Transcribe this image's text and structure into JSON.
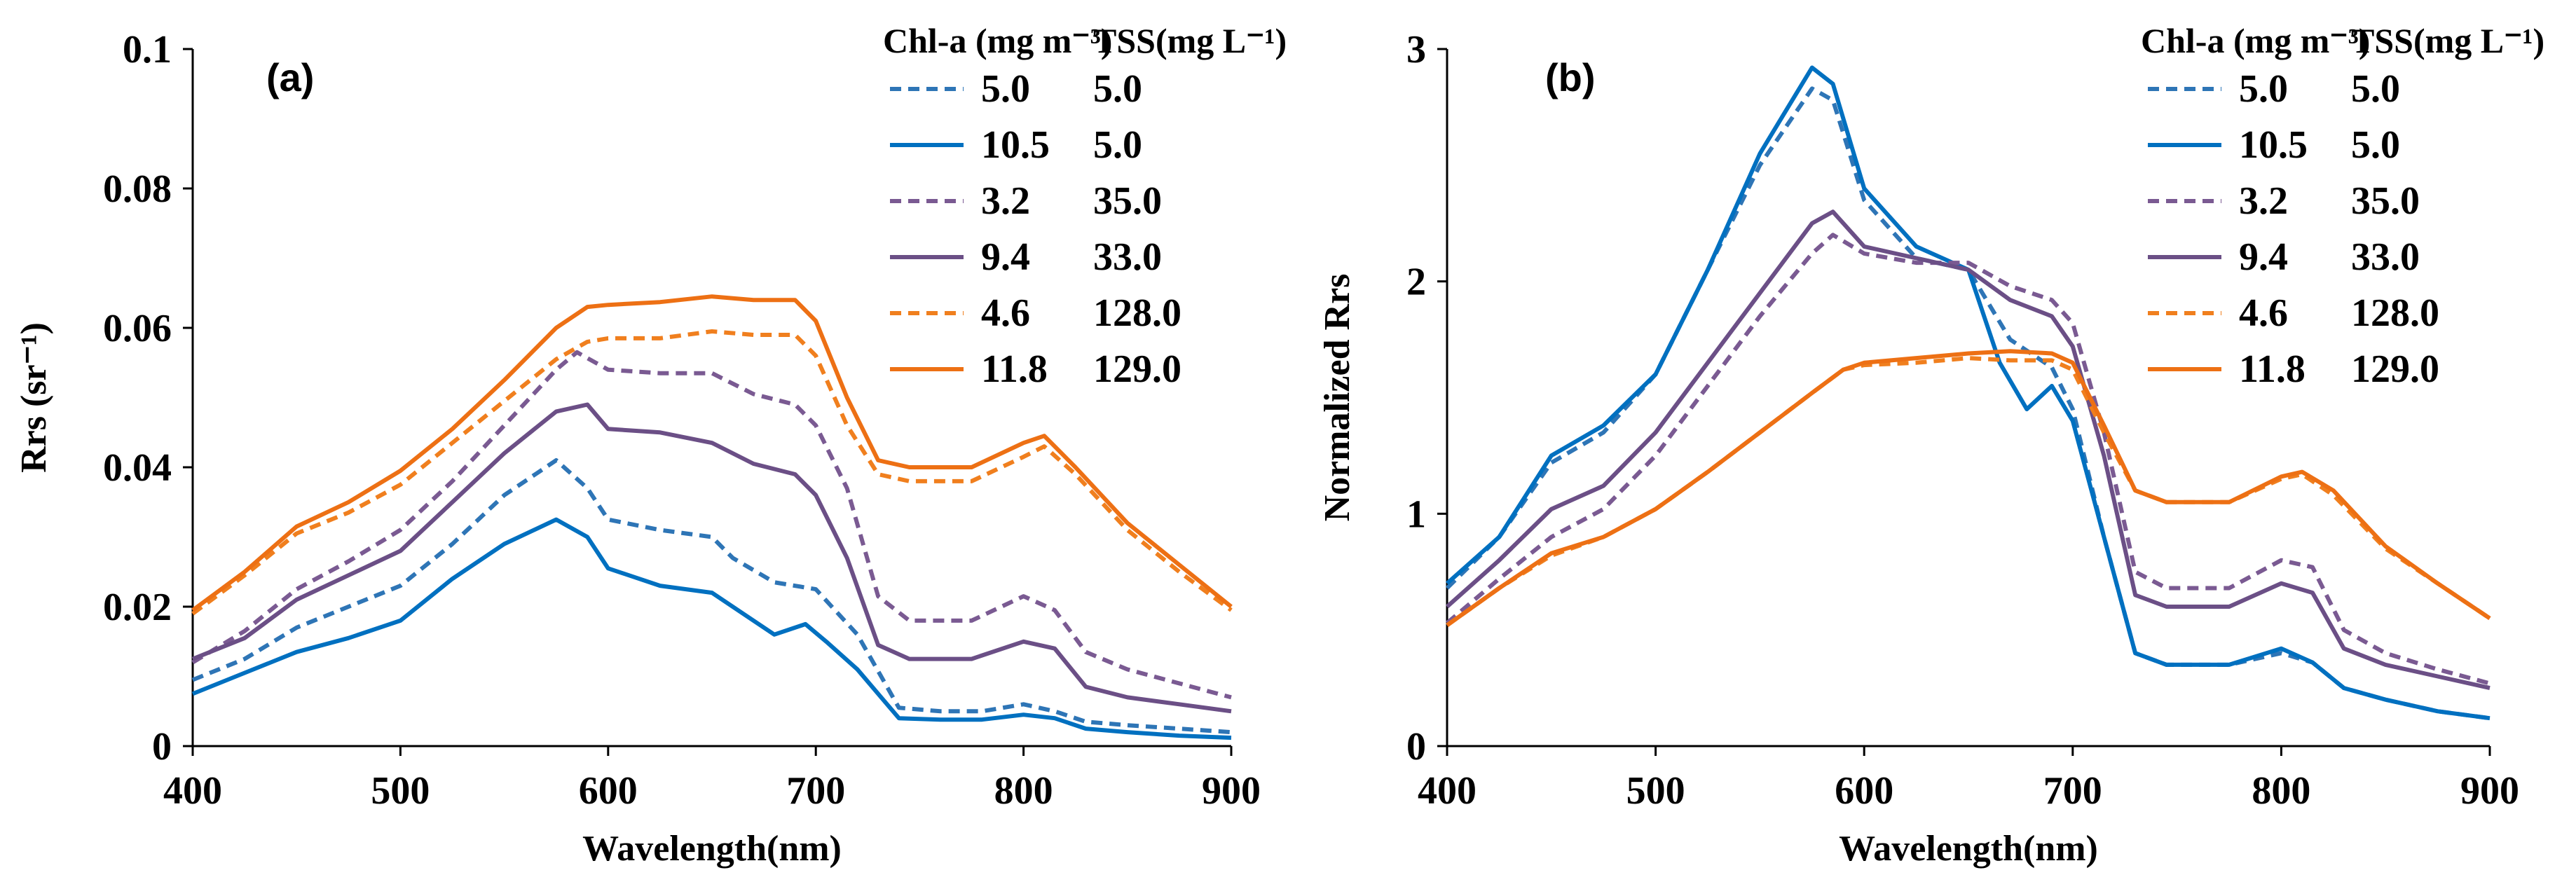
{
  "chart_data": [
    {
      "type": "line",
      "panel_label": "(a)",
      "xlabel": "Wavelength(nm)",
      "ylabel": "Rrs (sr⁻¹)",
      "xlim": [
        400,
        900
      ],
      "ylim": [
        0,
        0.1
      ],
      "xticks": [
        400,
        500,
        600,
        700,
        800,
        900
      ],
      "xtick_labels": [
        "400",
        "500",
        "600",
        "700",
        "800",
        "900"
      ],
      "yticks": [
        0,
        0.02,
        0.04,
        0.06,
        0.08,
        0.1
      ],
      "ytick_labels": [
        "0",
        "0.02",
        "0.04",
        "0.06",
        "0.08",
        "0.1"
      ],
      "legend": {
        "placement": "top-right",
        "header_chl": "Chl-a (mg m⁻³)",
        "header_tss": "TSS(mg L⁻¹)"
      },
      "series": [
        {
          "name": "5.0 / 5.0",
          "chl": "5.0",
          "tss": "5.0",
          "color": "#2e75b6",
          "dashed": true,
          "x": [
            400,
            425,
            450,
            475,
            500,
            525,
            550,
            575,
            590,
            600,
            625,
            650,
            660,
            680,
            700,
            720,
            740,
            760,
            780,
            800,
            815,
            830,
            850,
            875,
            900
          ],
          "y": [
            0.0095,
            0.0125,
            0.017,
            0.02,
            0.023,
            0.029,
            0.036,
            0.041,
            0.037,
            0.0325,
            0.031,
            0.03,
            0.027,
            0.0235,
            0.0225,
            0.016,
            0.0055,
            0.005,
            0.005,
            0.006,
            0.005,
            0.0035,
            0.003,
            0.0025,
            0.002
          ]
        },
        {
          "name": "10.5 / 5.0",
          "chl": "10.5",
          "tss": "5.0",
          "color": "#0070c0",
          "dashed": false,
          "x": [
            400,
            425,
            450,
            475,
            500,
            525,
            550,
            575,
            590,
            600,
            625,
            650,
            660,
            680,
            695,
            705,
            720,
            740,
            760,
            780,
            800,
            815,
            830,
            850,
            875,
            900
          ],
          "y": [
            0.0075,
            0.0105,
            0.0135,
            0.0155,
            0.018,
            0.024,
            0.029,
            0.0325,
            0.03,
            0.0255,
            0.023,
            0.022,
            0.02,
            0.016,
            0.0175,
            0.015,
            0.011,
            0.004,
            0.0038,
            0.0038,
            0.0045,
            0.004,
            0.0025,
            0.002,
            0.0015,
            0.0012
          ]
        },
        {
          "name": "3.2 / 35.0",
          "chl": "3.2",
          "tss": "35.0",
          "color": "#7a5a92",
          "dashed": true,
          "x": [
            400,
            425,
            450,
            475,
            500,
            525,
            550,
            575,
            585,
            600,
            625,
            650,
            670,
            690,
            700,
            715,
            730,
            745,
            775,
            800,
            815,
            830,
            850,
            875,
            900
          ],
          "y": [
            0.012,
            0.0165,
            0.0225,
            0.0265,
            0.031,
            0.038,
            0.046,
            0.054,
            0.0565,
            0.054,
            0.0535,
            0.0535,
            0.0505,
            0.049,
            0.046,
            0.037,
            0.0215,
            0.018,
            0.018,
            0.0215,
            0.0195,
            0.0135,
            0.011,
            0.009,
            0.007
          ]
        },
        {
          "name": "9.4 / 33.0",
          "chl": "9.4",
          "tss": "33.0",
          "color": "#6b4f86",
          "dashed": false,
          "x": [
            400,
            425,
            450,
            475,
            500,
            525,
            550,
            575,
            590,
            600,
            625,
            650,
            670,
            690,
            700,
            715,
            730,
            745,
            775,
            800,
            815,
            830,
            850,
            875,
            900
          ],
          "y": [
            0.0125,
            0.0155,
            0.021,
            0.0245,
            0.028,
            0.035,
            0.042,
            0.048,
            0.049,
            0.0455,
            0.045,
            0.0435,
            0.0405,
            0.039,
            0.036,
            0.027,
            0.0145,
            0.0125,
            0.0125,
            0.015,
            0.014,
            0.0085,
            0.007,
            0.006,
            0.005
          ]
        },
        {
          "name": "4.6 / 128.0",
          "chl": "4.6",
          "tss": "128.0",
          "color": "#f07f1e",
          "dashed": true,
          "x": [
            400,
            425,
            450,
            475,
            500,
            525,
            550,
            575,
            590,
            600,
            625,
            650,
            670,
            690,
            700,
            715,
            730,
            745,
            775,
            800,
            810,
            825,
            850,
            875,
            900
          ],
          "y": [
            0.019,
            0.0245,
            0.0305,
            0.0335,
            0.0375,
            0.0435,
            0.0495,
            0.0555,
            0.058,
            0.0585,
            0.0585,
            0.0595,
            0.059,
            0.059,
            0.056,
            0.046,
            0.039,
            0.038,
            0.038,
            0.0415,
            0.043,
            0.039,
            0.031,
            0.025,
            0.0195
          ]
        },
        {
          "name": "11.8 / 129.0",
          "chl": "11.8",
          "tss": "129.0",
          "color": "#ed7014",
          "dashed": false,
          "x": [
            400,
            425,
            450,
            475,
            500,
            525,
            550,
            575,
            590,
            600,
            625,
            650,
            670,
            690,
            700,
            715,
            730,
            745,
            775,
            800,
            810,
            825,
            850,
            875,
            900
          ],
          "y": [
            0.0195,
            0.025,
            0.0315,
            0.035,
            0.0395,
            0.0455,
            0.0525,
            0.06,
            0.063,
            0.0633,
            0.0637,
            0.0645,
            0.064,
            0.064,
            0.061,
            0.05,
            0.041,
            0.04,
            0.04,
            0.0435,
            0.0445,
            0.04,
            0.032,
            0.026,
            0.02
          ]
        }
      ]
    },
    {
      "type": "line",
      "panel_label": "(b)",
      "xlabel": "Wavelength(nm)",
      "ylabel": "Normalized Rrs",
      "xlim": [
        400,
        900
      ],
      "ylim": [
        0,
        3
      ],
      "xticks": [
        400,
        500,
        600,
        700,
        800,
        900
      ],
      "xtick_labels": [
        "400",
        "500",
        "600",
        "700",
        "800",
        "900"
      ],
      "yticks": [
        0,
        1,
        2,
        3
      ],
      "ytick_labels": [
        "0",
        "1",
        "2",
        "3"
      ],
      "legend": {
        "placement": "top-right",
        "header_chl": "Chl-a (mg m⁻³)",
        "header_tss": "TSS(mg L⁻¹)"
      },
      "series": [
        {
          "name": "5.0 / 5.0",
          "chl": "5.0",
          "tss": "5.0",
          "color": "#2e75b6",
          "dashed": true,
          "x": [
            400,
            425,
            450,
            475,
            500,
            525,
            550,
            575,
            585,
            600,
            625,
            650,
            670,
            690,
            700,
            715,
            730,
            745,
            775,
            800,
            815,
            830,
            850,
            875,
            900
          ],
          "y": [
            0.68,
            0.9,
            1.22,
            1.35,
            1.6,
            2.05,
            2.5,
            2.83,
            2.78,
            2.35,
            2.1,
            2.05,
            1.75,
            1.63,
            1.45,
            0.9,
            0.4,
            0.35,
            0.35,
            0.4,
            0.36,
            0.25,
            0.2,
            0.15,
            0.12
          ]
        },
        {
          "name": "10.5 / 5.0",
          "chl": "10.5",
          "tss": "5.0",
          "color": "#0070c0",
          "dashed": false,
          "x": [
            400,
            425,
            450,
            475,
            500,
            525,
            550,
            575,
            585,
            600,
            625,
            650,
            665,
            678,
            690,
            700,
            715,
            730,
            745,
            775,
            800,
            815,
            830,
            850,
            875,
            900
          ],
          "y": [
            0.7,
            0.9,
            1.25,
            1.38,
            1.6,
            2.05,
            2.55,
            2.92,
            2.85,
            2.4,
            2.15,
            2.05,
            1.65,
            1.45,
            1.55,
            1.4,
            0.9,
            0.4,
            0.35,
            0.35,
            0.42,
            0.36,
            0.25,
            0.2,
            0.15,
            0.12
          ]
        },
        {
          "name": "3.2 / 35.0",
          "chl": "3.2",
          "tss": "35.0",
          "color": "#7a5a92",
          "dashed": true,
          "x": [
            400,
            425,
            450,
            475,
            500,
            525,
            550,
            575,
            585,
            600,
            625,
            650,
            670,
            690,
            700,
            715,
            730,
            745,
            775,
            800,
            815,
            830,
            850,
            875,
            900
          ],
          "y": [
            0.53,
            0.72,
            0.9,
            1.02,
            1.25,
            1.55,
            1.85,
            2.12,
            2.2,
            2.12,
            2.08,
            2.08,
            1.98,
            1.92,
            1.82,
            1.35,
            0.75,
            0.68,
            0.68,
            0.8,
            0.77,
            0.5,
            0.4,
            0.33,
            0.27
          ]
        },
        {
          "name": "9.4 / 33.0",
          "chl": "9.4",
          "tss": "33.0",
          "color": "#6b4f86",
          "dashed": false,
          "x": [
            400,
            425,
            450,
            475,
            500,
            525,
            550,
            575,
            585,
            600,
            625,
            650,
            670,
            690,
            700,
            715,
            730,
            745,
            775,
            800,
            815,
            830,
            850,
            875,
            900
          ],
          "y": [
            0.6,
            0.8,
            1.02,
            1.12,
            1.35,
            1.65,
            1.95,
            2.25,
            2.3,
            2.15,
            2.1,
            2.05,
            1.92,
            1.85,
            1.72,
            1.25,
            0.65,
            0.6,
            0.6,
            0.7,
            0.66,
            0.42,
            0.35,
            0.3,
            0.25
          ]
        },
        {
          "name": "4.6 / 128.0",
          "chl": "4.6",
          "tss": "128.0",
          "color": "#f07f1e",
          "dashed": true,
          "x": [
            400,
            425,
            450,
            475,
            500,
            525,
            550,
            575,
            590,
            600,
            625,
            650,
            670,
            690,
            700,
            715,
            730,
            745,
            775,
            800,
            810,
            825,
            850,
            875,
            900
          ],
          "y": [
            0.52,
            0.68,
            0.82,
            0.9,
            1.02,
            1.18,
            1.35,
            1.52,
            1.62,
            1.64,
            1.65,
            1.67,
            1.66,
            1.66,
            1.62,
            1.35,
            1.1,
            1.05,
            1.05,
            1.15,
            1.17,
            1.08,
            0.85,
            0.7,
            0.55
          ]
        },
        {
          "name": "11.8 / 129.0",
          "chl": "11.8",
          "tss": "129.0",
          "color": "#ed7014",
          "dashed": false,
          "x": [
            400,
            425,
            450,
            475,
            500,
            525,
            550,
            575,
            590,
            600,
            625,
            650,
            670,
            690,
            700,
            715,
            730,
            745,
            775,
            800,
            810,
            825,
            850,
            875,
            900
          ],
          "y": [
            0.52,
            0.68,
            0.83,
            0.9,
            1.02,
            1.18,
            1.35,
            1.52,
            1.62,
            1.65,
            1.67,
            1.69,
            1.7,
            1.69,
            1.65,
            1.38,
            1.1,
            1.05,
            1.05,
            1.16,
            1.18,
            1.1,
            0.86,
            0.7,
            0.55
          ]
        }
      ]
    }
  ]
}
